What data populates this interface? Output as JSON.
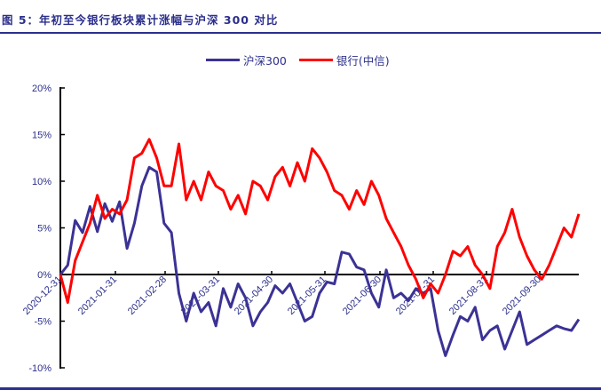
{
  "title": "图 5：年初至今银行板块累计涨幅与沪深 300 对比",
  "colors": {
    "hs300": "#3b3295",
    "bank": "#ff0000",
    "text": "#2b2f8c",
    "rule": "#2b2f8c"
  },
  "legend": [
    {
      "name": "沪深300",
      "color": "#3b3295"
    },
    {
      "name": "银行(中信)",
      "color": "#ff0000"
    }
  ],
  "chart_data": {
    "type": "line",
    "title": "年初至今银行板块累计涨幅与沪深 300 对比",
    "xlabel": "",
    "ylabel": "",
    "ylim": [
      -0.1,
      0.2
    ],
    "yticks": [
      "-10%",
      "-5%",
      "0%",
      "5%",
      "10%",
      "15%",
      "20%"
    ],
    "xticks": [
      "2020-12-31",
      "2021-01-31",
      "2021-02-28",
      "2021-03-31",
      "2021-04-30",
      "2021-05-31",
      "2021-06-30",
      "2021-07-31",
      "2021-08-31",
      "2021-09-30"
    ],
    "grid": false,
    "legend_position": "top",
    "x": [
      "2020-12-31",
      "2021-01-05",
      "2021-01-08",
      "2021-01-12",
      "2021-01-15",
      "2021-01-19",
      "2021-01-22",
      "2021-01-26",
      "2021-01-29",
      "2021-02-02",
      "2021-02-05",
      "2021-02-09",
      "2021-02-10",
      "2021-02-18",
      "2021-02-22",
      "2021-02-25",
      "2021-03-02",
      "2021-03-05",
      "2021-03-09",
      "2021-03-12",
      "2021-03-16",
      "2021-03-19",
      "2021-03-23",
      "2021-03-26",
      "2021-03-31",
      "2021-04-06",
      "2021-04-09",
      "2021-04-14",
      "2021-04-19",
      "2021-04-22",
      "2021-04-27",
      "2021-04-30",
      "2021-05-07",
      "2021-05-12",
      "2021-05-17",
      "2021-05-20",
      "2021-05-25",
      "2021-05-28",
      "2021-06-02",
      "2021-06-07",
      "2021-06-10",
      "2021-06-16",
      "2021-06-21",
      "2021-06-24",
      "2021-06-30",
      "2021-07-05",
      "2021-07-08",
      "2021-07-13",
      "2021-07-16",
      "2021-07-21",
      "2021-07-26",
      "2021-07-28",
      "2021-07-30",
      "2021-08-04",
      "2021-08-09",
      "2021-08-12",
      "2021-08-17",
      "2021-08-20",
      "2021-08-25",
      "2021-08-31",
      "2021-09-03",
      "2021-09-08",
      "2021-09-13",
      "2021-09-16",
      "2021-09-22",
      "2021-09-27",
      "2021-09-30",
      "2021-10-12",
      "2021-10-15",
      "2021-10-20",
      "2021-10-22"
    ],
    "series": [
      {
        "name": "沪深300",
        "values": [
          0.0,
          1.0,
          5.8,
          4.5,
          7.3,
          4.6,
          7.6,
          5.7,
          7.8,
          2.8,
          5.5,
          9.5,
          11.5,
          11.0,
          5.5,
          4.5,
          -2.0,
          -5.0,
          -2.0,
          -4.0,
          -3.0,
          -5.5,
          -1.5,
          -3.5,
          -1.0,
          -2.5,
          -5.5,
          -4.0,
          -3.0,
          -1.2,
          -2.0,
          -1.0,
          -3.0,
          -5.0,
          -4.5,
          -2.0,
          -0.8,
          -1.0,
          2.4,
          2.2,
          0.8,
          0.5,
          -2.0,
          -3.5,
          0.5,
          -2.5,
          -2.0,
          -2.8,
          -1.5,
          -2.0,
          -1.5,
          -6.0,
          -8.7,
          -6.5,
          -4.5,
          -5.0,
          -3.5,
          -7.0,
          -6.0,
          -5.5,
          -8.0,
          -6.0,
          -4.0,
          -7.5,
          -7.0,
          -6.5,
          -6.0,
          -5.5,
          -5.8,
          -6.0,
          -4.8
        ]
      },
      {
        "name": "银行(中信)",
        "values": [
          0.0,
          -3.0,
          1.5,
          3.5,
          5.5,
          8.5,
          6.0,
          7.0,
          6.5,
          8.0,
          12.5,
          13.0,
          14.5,
          12.5,
          9.5,
          9.5,
          14.0,
          8.0,
          10.0,
          8.0,
          11.0,
          9.5,
          9.0,
          7.0,
          8.5,
          6.5,
          10.0,
          9.5,
          8.0,
          10.5,
          11.5,
          9.5,
          12.0,
          10.0,
          13.5,
          12.5,
          11.0,
          9.0,
          8.5,
          7.0,
          9.0,
          7.5,
          10.0,
          8.5,
          6.0,
          4.5,
          3.0,
          1.0,
          -0.5,
          -2.5,
          -1.0,
          -2.0,
          0.0,
          2.5,
          2.0,
          3.0,
          1.0,
          0.0,
          -1.5,
          3.0,
          4.5,
          7.0,
          4.0,
          2.0,
          0.5,
          -0.5,
          1.0,
          3.0,
          5.0,
          4.0,
          6.5
        ]
      }
    ]
  }
}
